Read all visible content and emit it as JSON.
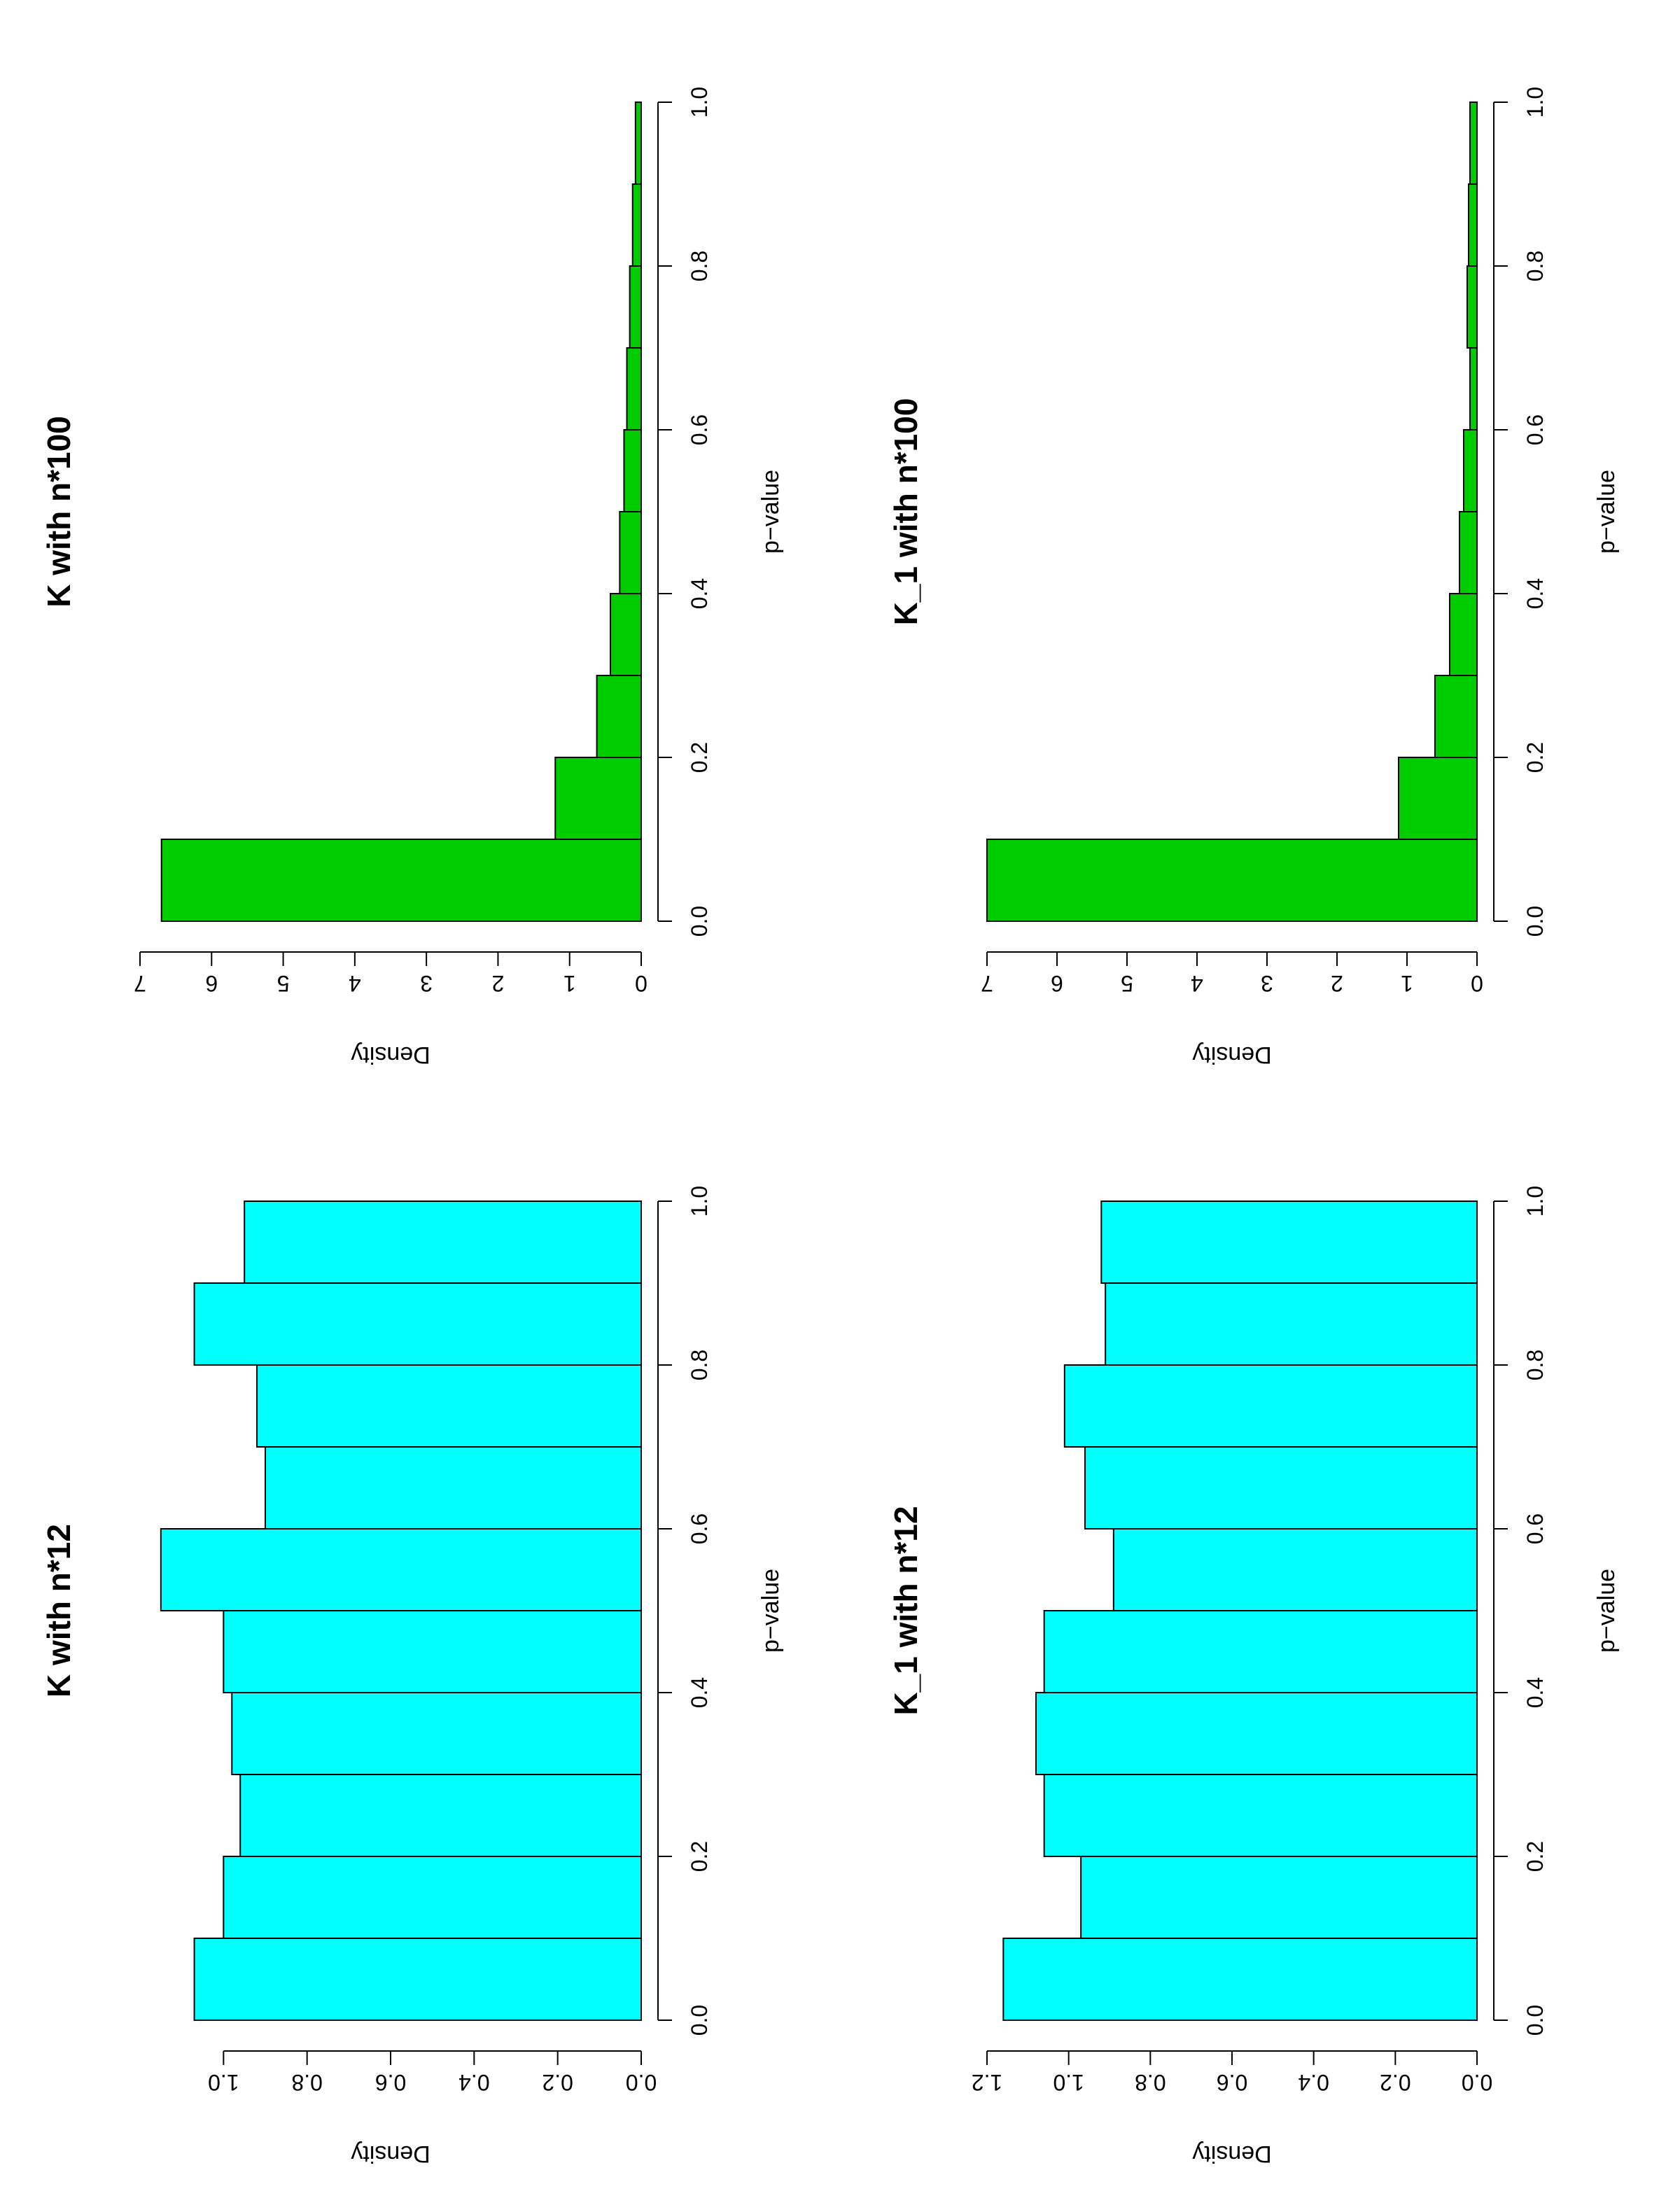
{
  "chart_data": [
    {
      "type": "histogram",
      "title": "K with n*12",
      "xlabel": "p−value",
      "ylabel": "Density",
      "color": "#00ffff",
      "bins": [
        0,
        0.1,
        0.2,
        0.3,
        0.4,
        0.5,
        0.6,
        0.7,
        0.8,
        0.9,
        1.0
      ],
      "values": [
        1.07,
        1.0,
        0.96,
        0.98,
        1.0,
        1.15,
        0.9,
        0.92,
        1.07,
        0.95
      ],
      "xlim": [
        0,
        1
      ],
      "ylim": [
        0,
        1.2
      ],
      "xticks": [
        {
          "value": 0,
          "label": "0.0"
        },
        {
          "value": 0.2,
          "label": "0.2"
        },
        {
          "value": 0.4,
          "label": "0.4"
        },
        {
          "value": 0.6,
          "label": "0.6"
        },
        {
          "value": 0.8,
          "label": "0.8"
        },
        {
          "value": 1.0,
          "label": "1.0"
        }
      ],
      "yticks": [
        {
          "value": 0,
          "label": "0.0"
        },
        {
          "value": 0.2,
          "label": "0.2"
        },
        {
          "value": 0.4,
          "label": "0.4"
        },
        {
          "value": 0.6,
          "label": "0.6"
        },
        {
          "value": 0.8,
          "label": "0.8"
        },
        {
          "value": 1.0,
          "label": "1.0"
        }
      ]
    },
    {
      "type": "histogram",
      "title": "K with n*100",
      "xlabel": "p−value",
      "ylabel": "Density",
      "color": "#00cd00",
      "bins": [
        0,
        0.1,
        0.2,
        0.3,
        0.4,
        0.5,
        0.6,
        0.7,
        0.8,
        0.9,
        1.0
      ],
      "values": [
        6.7,
        1.2,
        0.62,
        0.43,
        0.3,
        0.24,
        0.2,
        0.16,
        0.12,
        0.08
      ],
      "xlim": [
        0,
        1
      ],
      "ylim": [
        0,
        7
      ],
      "xticks": [
        {
          "value": 0,
          "label": "0.0"
        },
        {
          "value": 0.2,
          "label": "0.2"
        },
        {
          "value": 0.4,
          "label": "0.4"
        },
        {
          "value": 0.6,
          "label": "0.6"
        },
        {
          "value": 0.8,
          "label": "0.8"
        },
        {
          "value": 1.0,
          "label": "1.0"
        }
      ],
      "yticks": [
        0,
        1,
        2,
        3,
        4,
        5,
        6,
        7
      ]
    },
    {
      "type": "histogram",
      "title": "K_1 with n*12",
      "xlabel": "p−value",
      "ylabel": "Density",
      "color": "#00ffff",
      "bins": [
        0,
        0.1,
        0.2,
        0.3,
        0.4,
        0.5,
        0.6,
        0.7,
        0.8,
        0.9,
        1.0
      ],
      "values": [
        1.16,
        0.97,
        1.06,
        1.08,
        1.06,
        0.89,
        0.96,
        1.01,
        0.91,
        0.92
      ],
      "xlim": [
        0,
        1
      ],
      "ylim": [
        0,
        1.2
      ],
      "xticks": [
        {
          "value": 0,
          "label": "0.0"
        },
        {
          "value": 0.2,
          "label": "0.2"
        },
        {
          "value": 0.4,
          "label": "0.4"
        },
        {
          "value": 0.6,
          "label": "0.6"
        },
        {
          "value": 0.8,
          "label": "0.8"
        },
        {
          "value": 1.0,
          "label": "1.0"
        }
      ],
      "yticks": [
        {
          "value": 0,
          "label": "0.0"
        },
        {
          "value": 0.2,
          "label": "0.2"
        },
        {
          "value": 0.4,
          "label": "0.4"
        },
        {
          "value": 0.6,
          "label": "0.6"
        },
        {
          "value": 0.8,
          "label": "0.8"
        },
        {
          "value": 1.0,
          "label": "1.0"
        },
        {
          "value": 1.2,
          "label": "1.2"
        }
      ]
    },
    {
      "type": "histogram",
      "title": "K_1 with n*100",
      "xlabel": "p−value",
      "ylabel": "Density",
      "color": "#00cd00",
      "bins": [
        0,
        0.1,
        0.2,
        0.3,
        0.4,
        0.5,
        0.6,
        0.7,
        0.8,
        0.9,
        1.0
      ],
      "values": [
        7.0,
        1.12,
        0.6,
        0.39,
        0.25,
        0.19,
        0.1,
        0.14,
        0.12,
        0.1
      ],
      "xlim": [
        0,
        1
      ],
      "ylim": [
        0,
        7
      ],
      "xticks": [
        {
          "value": 0,
          "label": "0.0"
        },
        {
          "value": 0.2,
          "label": "0.2"
        },
        {
          "value": 0.4,
          "label": "0.4"
        },
        {
          "value": 0.6,
          "label": "0.6"
        },
        {
          "value": 0.8,
          "label": "0.8"
        },
        {
          "value": 1.0,
          "label": "1.0"
        }
      ],
      "yticks": [
        0,
        1,
        2,
        3,
        4,
        5,
        6,
        7
      ]
    }
  ]
}
